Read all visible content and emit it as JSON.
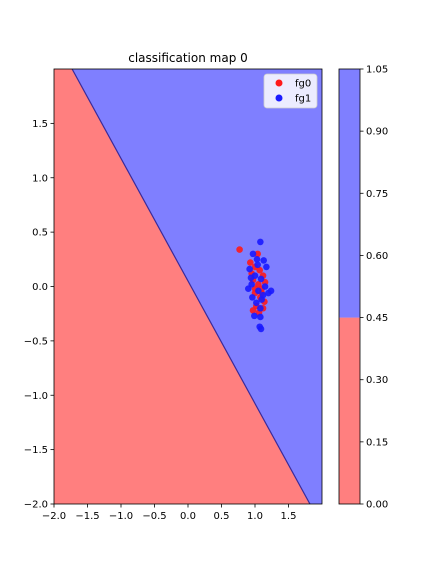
{
  "chart_data": {
    "type": "scatter",
    "title": "classification map 0",
    "xlim": [
      -2.0,
      2.0
    ],
    "ylim": [
      -2.0,
      2.0
    ],
    "x_ticks": [
      -2.0,
      -1.5,
      -1.0,
      -0.5,
      0.0,
      0.5,
      1.0,
      1.5
    ],
    "x_tick_labels": [
      "−2.0",
      "−1.5",
      "−1.0",
      "−0.5",
      "0.0",
      "0.5",
      "1.0",
      "1.5"
    ],
    "y_ticks": [
      -2.0,
      -1.5,
      -1.0,
      -0.5,
      0.0,
      0.5,
      1.0,
      1.5
    ],
    "y_tick_labels": [
      "−2.0",
      "−1.5",
      "−1.0",
      "−0.5",
      "0.0",
      "0.5",
      "1.0",
      "1.5"
    ],
    "decision_boundary": {
      "points": [
        [
          -1.73,
          2.0
        ],
        [
          1.82,
          -2.0
        ]
      ]
    },
    "regions": [
      {
        "label": "fg0",
        "side": "lower-left",
        "color": "#ff7f7f"
      },
      {
        "label": "fg1",
        "side": "upper-right",
        "color": "#7f7fff"
      }
    ],
    "legend": {
      "position": "top-right",
      "entries": [
        "fg0",
        "fg1"
      ]
    },
    "series": [
      {
        "name": "fg0",
        "color": "#ff1a1a",
        "points": [
          [
            0.77,
            0.34
          ],
          [
            0.93,
            0.22
          ],
          [
            1.0,
            0.18
          ],
          [
            1.07,
            0.15
          ],
          [
            1.12,
            0.1
          ],
          [
            0.97,
            0.06
          ],
          [
            1.05,
            0.02
          ],
          [
            1.1,
            -0.02
          ],
          [
            1.0,
            -0.06
          ],
          [
            1.08,
            -0.1
          ],
          [
            1.14,
            -0.14
          ],
          [
            1.02,
            -0.18
          ],
          [
            0.97,
            -0.22
          ],
          [
            1.06,
            -0.24
          ],
          [
            1.12,
            -0.2
          ],
          [
            1.04,
            0.3
          ],
          [
            0.95,
            0.12
          ],
          [
            1.15,
            0.04
          ],
          [
            1.0,
            -0.02
          ],
          [
            1.1,
            -0.06
          ]
        ]
      },
      {
        "name": "fg1",
        "color": "#1a1aff",
        "points": [
          [
            1.08,
            0.41
          ],
          [
            0.97,
            0.3
          ],
          [
            1.13,
            0.24
          ],
          [
            1.04,
            0.2
          ],
          [
            1.17,
            0.18
          ],
          [
            0.92,
            0.16
          ],
          [
            1.0,
            0.1
          ],
          [
            1.09,
            0.07
          ],
          [
            0.95,
            0.02
          ],
          [
            1.15,
            0.0
          ],
          [
            0.9,
            -0.02
          ],
          [
            1.05,
            -0.04
          ],
          [
            1.24,
            -0.04
          ],
          [
            1.2,
            -0.06
          ],
          [
            0.96,
            -0.1
          ],
          [
            1.1,
            -0.12
          ],
          [
            1.02,
            -0.15
          ],
          [
            1.08,
            -0.2
          ],
          [
            0.99,
            -0.27
          ],
          [
            1.08,
            -0.28
          ],
          [
            1.07,
            -0.37
          ],
          [
            1.09,
            -0.39
          ],
          [
            1.03,
            0.25
          ],
          [
            1.12,
            -0.08
          ],
          [
            0.94,
            0.08
          ]
        ]
      }
    ],
    "colorbar": {
      "ticks": [
        0.0,
        0.15,
        0.3,
        0.45,
        0.6,
        0.75,
        0.9,
        1.05
      ],
      "tick_labels": [
        "0.00",
        "0.15",
        "0.30",
        "0.45",
        "0.60",
        "0.75",
        "0.90",
        "1.05"
      ],
      "range": [
        0.0,
        1.05
      ],
      "segments": [
        {
          "from": 0.0,
          "to": 0.45,
          "color": "#ff7f7f"
        },
        {
          "from": 0.45,
          "to": 1.05,
          "color": "#7f7fff"
        }
      ]
    }
  }
}
